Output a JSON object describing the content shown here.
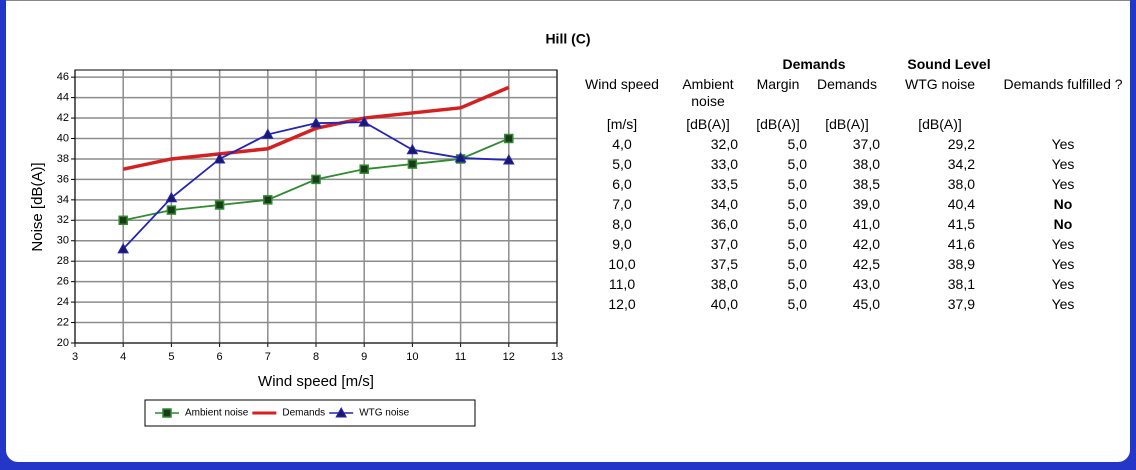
{
  "chart_data": {
    "type": "line",
    "title": "Hill (C)",
    "x_label": "Wind speed [m/s]",
    "y_label": "Noise [dB(A)]",
    "x": [
      4,
      5,
      6,
      7,
      8,
      9,
      10,
      11,
      12
    ],
    "xlim": [
      3,
      13
    ],
    "xticks": [
      3,
      4,
      5,
      6,
      7,
      8,
      9,
      10,
      11,
      12,
      13
    ],
    "ylim": [
      20,
      46.7
    ],
    "yticks": [
      20,
      22,
      24,
      26,
      28,
      30,
      32,
      34,
      36,
      38,
      40,
      42,
      44,
      46
    ],
    "grid": true,
    "legend": "bottom",
    "series": [
      {
        "name": "Ambient noise",
        "color": "#2e8b2e",
        "marker": "square",
        "values": [
          32,
          33,
          33.5,
          34,
          36,
          37,
          37.5,
          38,
          40
        ]
      },
      {
        "name": "Demands",
        "color": "#d42020",
        "marker": "none",
        "values": [
          37,
          38,
          38.5,
          39,
          41,
          42,
          42.5,
          43,
          45
        ]
      },
      {
        "name": "WTG noise",
        "color": "#2424b8",
        "marker": "triangle",
        "values": [
          29.2,
          34.2,
          38,
          40.4,
          41.5,
          41.6,
          38.9,
          38.1,
          37.9
        ]
      }
    ]
  },
  "table": {
    "group_headers": [
      "Demands",
      "Sound Level"
    ],
    "headers": [
      "Wind speed",
      "Ambient noise",
      "Margin",
      "Demands",
      "WTG noise",
      "Demands fulfilled ?"
    ],
    "units": [
      "[m/s]",
      "[dB(A)]",
      "[dB(A)]",
      "[dB(A)]",
      "[dB(A)]"
    ],
    "rows": [
      [
        "4,0",
        "32,0",
        "5,0",
        "37,0",
        "29,2",
        "Yes"
      ],
      [
        "5,0",
        "33,0",
        "5,0",
        "38,0",
        "34,2",
        "Yes"
      ],
      [
        "6,0",
        "33,5",
        "5,0",
        "38,5",
        "38,0",
        "Yes"
      ],
      [
        "7,0",
        "34,0",
        "5,0",
        "39,0",
        "40,4",
        "No"
      ],
      [
        "8,0",
        "36,0",
        "5,0",
        "41,0",
        "41,5",
        "No"
      ],
      [
        "9,0",
        "37,0",
        "5,0",
        "42,0",
        "41,6",
        "Yes"
      ],
      [
        "10,0",
        "37,5",
        "5,0",
        "42,5",
        "38,9",
        "Yes"
      ],
      [
        "11,0",
        "38,0",
        "5,0",
        "43,0",
        "38,1",
        "Yes"
      ],
      [
        "12,0",
        "40,0",
        "5,0",
        "45,0",
        "37,9",
        "Yes"
      ]
    ]
  }
}
